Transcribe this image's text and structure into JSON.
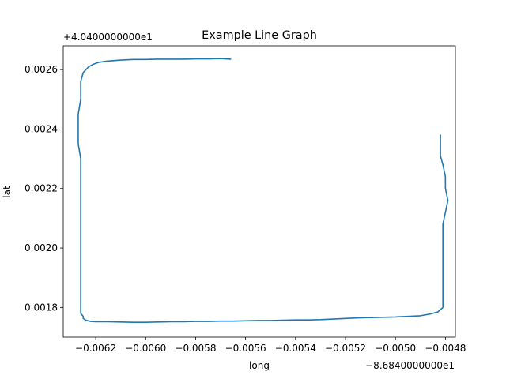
{
  "chart_data": {
    "type": "line",
    "title": "Example Line Graph",
    "xlabel": "long",
    "ylabel": "lat",
    "x_offset_label": "−8.6840000000e1",
    "y_offset_label": "+4.0400000000e1",
    "xlim": [
      -0.00633,
      -0.00476
    ],
    "ylim": [
      0.0017,
      0.00268
    ],
    "x_ticks": [
      -0.0062,
      -0.006,
      -0.0058,
      -0.0056,
      -0.0054,
      -0.0052,
      -0.005,
      -0.0048
    ],
    "x_tick_labels": [
      "−0.0062",
      "−0.0060",
      "−0.0058",
      "−0.0056",
      "−0.0054",
      "−0.0052",
      "−0.0050",
      "−0.0048"
    ],
    "y_ticks": [
      0.0018,
      0.002,
      0.0022,
      0.0024,
      0.0026
    ],
    "y_tick_labels": [
      "0.0018",
      "0.0020",
      "0.0022",
      "0.0024",
      "0.0026"
    ],
    "grid": false,
    "series": [
      {
        "color": "#1f77b4",
        "x": [
          -0.00566,
          -0.0057,
          -0.00575,
          -0.0058,
          -0.00585,
          -0.0059,
          -0.00595,
          -0.006,
          -0.00605,
          -0.0061,
          -0.00613,
          -0.00616,
          -0.00619,
          -0.00621,
          -0.00623,
          -0.00625,
          -0.00626,
          -0.00626,
          -0.00627,
          -0.00627,
          -0.00627,
          -0.00626,
          -0.00626,
          -0.00626,
          -0.00626,
          -0.00626,
          -0.00626,
          -0.00626,
          -0.00626,
          -0.00626,
          -0.00625,
          -0.00625,
          -0.00624,
          -0.00622,
          -0.0062,
          -0.00615,
          -0.0061,
          -0.00605,
          -0.006,
          -0.00595,
          -0.0059,
          -0.00585,
          -0.0058,
          -0.00575,
          -0.0057,
          -0.00565,
          -0.0056,
          -0.00555,
          -0.0055,
          -0.00545,
          -0.0054,
          -0.00535,
          -0.0053,
          -0.00525,
          -0.0052,
          -0.00515,
          -0.0051,
          -0.00505,
          -0.005,
          -0.00495,
          -0.0049,
          -0.00486,
          -0.00483,
          -0.00481,
          -0.00481,
          -0.00481,
          -0.00481,
          -0.00481,
          -0.00481,
          -0.00481,
          -0.0048,
          -0.00479,
          -0.0048,
          -0.0048,
          -0.00481,
          -0.00482,
          -0.00482,
          -0.00482,
          -0.00482
        ],
        "y": [
          0.002635,
          0.002637,
          0.002636,
          0.002636,
          0.002635,
          0.002635,
          0.002635,
          0.002634,
          0.002634,
          0.002632,
          0.00263,
          0.002628,
          0.002624,
          0.002618,
          0.002608,
          0.00259,
          0.00256,
          0.0025,
          0.00245,
          0.0024,
          0.00235,
          0.0023,
          0.0022,
          0.0021,
          0.002,
          0.00195,
          0.0019,
          0.00185,
          0.0018,
          0.00178,
          0.00177,
          0.001763,
          0.001757,
          0.001753,
          0.001752,
          0.001752,
          0.001751,
          0.00175,
          0.00175,
          0.001751,
          0.001752,
          0.001752,
          0.001753,
          0.001753,
          0.001754,
          0.001754,
          0.001755,
          0.001756,
          0.001756,
          0.001757,
          0.001758,
          0.001758,
          0.001759,
          0.001761,
          0.001763,
          0.001765,
          0.001766,
          0.001767,
          0.001768,
          0.00177,
          0.001772,
          0.001778,
          0.001785,
          0.0018,
          0.00185,
          0.0019,
          0.00195,
          0.002,
          0.00205,
          0.00208,
          0.00212,
          0.00216,
          0.0022,
          0.00224,
          0.00228,
          0.00231,
          0.00234,
          0.002365,
          0.00238
        ]
      }
    ]
  }
}
